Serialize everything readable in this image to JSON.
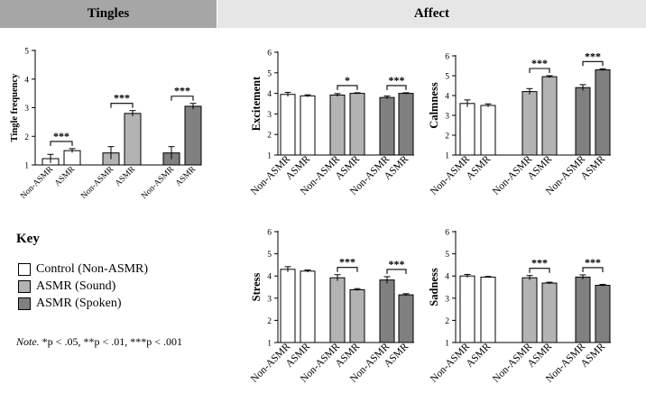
{
  "headers": {
    "left": "Tingles",
    "right": "Affect"
  },
  "colors": {
    "control": "#ffffff",
    "sound": "#b3b3b3",
    "spoken": "#808080",
    "axis": "#000000"
  },
  "legend": {
    "title": "Key",
    "items": [
      {
        "label": "Control (Non-ASMR)",
        "color": "#ffffff"
      },
      {
        "label": "ASMR (Sound)",
        "color": "#b3b3b3"
      },
      {
        "label": "ASMR (Spoken)",
        "color": "#808080"
      }
    ]
  },
  "note": {
    "label": "Note.",
    "text": " *p < .05, **p < .01, ***p < .001"
  },
  "chart_data": [
    {
      "type": "bar",
      "id": "tingles",
      "ylabel": "Tingle frequency",
      "ylim": [
        1,
        5
      ],
      "yticks": [
        "1",
        "2",
        "3",
        "4",
        "5"
      ],
      "categories": [
        "Non-ASMR",
        "ASMR",
        "Non-ASMR",
        "ASMR",
        "Non-ASMR",
        "ASMR"
      ],
      "groups": [
        "control",
        "control",
        "sound",
        "sound",
        "spoken",
        "spoken"
      ],
      "values": [
        1.22,
        1.5,
        1.42,
        2.8,
        1.42,
        3.05
      ],
      "errors": [
        0.15,
        0.07,
        0.22,
        0.1,
        0.22,
        0.1
      ],
      "significance": [
        {
          "pair": [
            0,
            1
          ],
          "label": "***"
        },
        {
          "pair": [
            2,
            3
          ],
          "label": "***"
        },
        {
          "pair": [
            4,
            5
          ],
          "label": "***"
        }
      ]
    },
    {
      "type": "bar",
      "id": "excitement",
      "ylabel": "Excitement",
      "ylim": [
        1,
        6
      ],
      "yticks": [
        "1",
        "2",
        "3",
        "4",
        "5",
        "6"
      ],
      "categories": [
        "Non-ASMR",
        "ASMR",
        "Non-ASMR",
        "ASMR",
        "Non-ASMR",
        "ASMR"
      ],
      "groups": [
        "control",
        "control",
        "sound",
        "sound",
        "spoken",
        "spoken"
      ],
      "values": [
        3.95,
        3.88,
        3.92,
        4.0,
        3.8,
        4.0
      ],
      "errors": [
        0.1,
        0.05,
        0.07,
        0.03,
        0.07,
        0.03
      ],
      "significance": [
        {
          "pair": [
            2,
            3
          ],
          "label": "*"
        },
        {
          "pair": [
            4,
            5
          ],
          "label": "***"
        }
      ]
    },
    {
      "type": "bar",
      "id": "calmness",
      "ylabel": "Calmness",
      "ylim": [
        1,
        6
      ],
      "yticks": [
        "1",
        "2",
        "3",
        "4",
        "5",
        "6"
      ],
      "categories": [
        "Non-ASMR",
        "ASMR",
        "Non-ASMR",
        "ASMR",
        "Non-ASMR",
        "ASMR"
      ],
      "groups": [
        "control",
        "control",
        "sound",
        "sound",
        "spoken",
        "spoken"
      ],
      "values": [
        3.6,
        3.5,
        4.2,
        4.95,
        4.4,
        5.3
      ],
      "errors": [
        0.18,
        0.08,
        0.15,
        0.05,
        0.15,
        0.05
      ],
      "significance": [
        {
          "pair": [
            2,
            3
          ],
          "label": "***"
        },
        {
          "pair": [
            4,
            5
          ],
          "label": "***"
        }
      ]
    },
    {
      "type": "bar",
      "id": "stress",
      "ylabel": "Stress",
      "ylim": [
        1,
        6
      ],
      "yticks": [
        "1",
        "2",
        "3",
        "4",
        "5",
        "6"
      ],
      "categories": [
        "Non-ASMR",
        "ASMR",
        "Non-ASMR",
        "ASMR",
        "Non-ASMR",
        "ASMR"
      ],
      "groups": [
        "control",
        "control",
        "sound",
        "sound",
        "spoken",
        "spoken"
      ],
      "values": [
        4.3,
        4.22,
        3.92,
        3.38,
        3.82,
        3.15
      ],
      "errors": [
        0.12,
        0.05,
        0.14,
        0.05,
        0.15,
        0.05
      ],
      "significance": [
        {
          "pair": [
            2,
            3
          ],
          "label": "***"
        },
        {
          "pair": [
            4,
            5
          ],
          "label": "***"
        }
      ]
    },
    {
      "type": "bar",
      "id": "sadness",
      "ylabel": "Sadness",
      "ylim": [
        1,
        6
      ],
      "yticks": [
        "1",
        "2",
        "3",
        "4",
        "5",
        "6"
      ],
      "categories": [
        "Non-ASMR",
        "ASMR",
        "Non-ASMR",
        "ASMR",
        "Non-ASMR",
        "ASMR"
      ],
      "groups": [
        "control",
        "control",
        "sound",
        "sound",
        "spoken",
        "spoken"
      ],
      "values": [
        4.0,
        3.95,
        3.92,
        3.68,
        3.95,
        3.58
      ],
      "errors": [
        0.07,
        0.03,
        0.1,
        0.04,
        0.1,
        0.04
      ],
      "significance": [
        {
          "pair": [
            2,
            3
          ],
          "label": "***"
        },
        {
          "pair": [
            4,
            5
          ],
          "label": "***"
        }
      ]
    }
  ]
}
